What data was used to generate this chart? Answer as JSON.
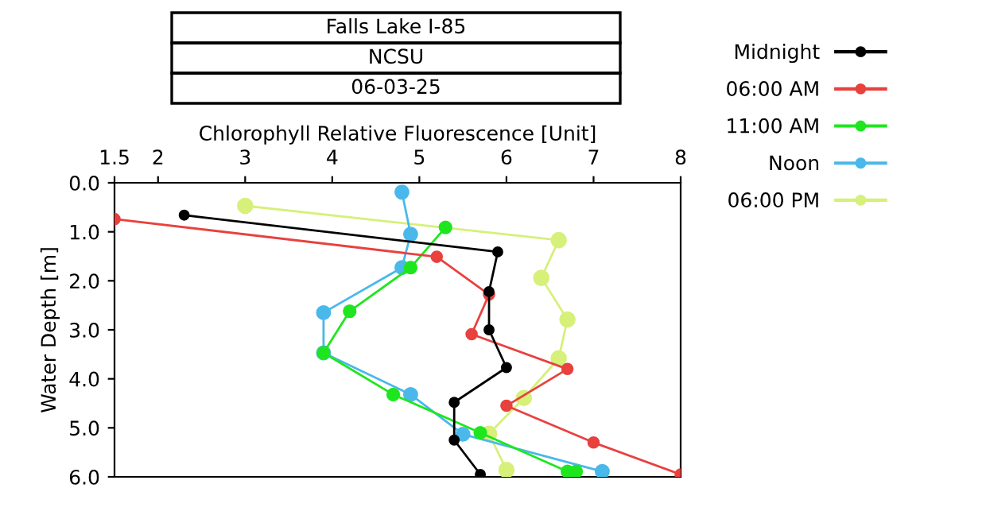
{
  "chart_data": {
    "type": "line",
    "title": "Falls Lake I-85",
    "subtitle": "NCSU",
    "annotations": [
      "06-03-25"
    ],
    "xlabel": "Chlorophyll Relative Fluorescence [Unit]",
    "ylabel": "Water Depth [m]",
    "xlim": [
      1.5,
      8
    ],
    "xticks": [
      1.5,
      2,
      3,
      4,
      5,
      6,
      7,
      8
    ],
    "ylim": [
      6.0,
      0.0
    ],
    "yticks": [
      {
        "value": 0,
        "label": "0.0"
      },
      {
        "value": 1,
        "label": "1.0"
      },
      {
        "value": 2,
        "label": "2.0"
      },
      {
        "value": 3,
        "label": "3.0"
      },
      {
        "value": 4,
        "label": "4.0"
      },
      {
        "value": 5,
        "label": "5.0"
      },
      {
        "value": 6,
        "label": "6.0"
      }
    ],
    "marker": "circle",
    "line_style": "solid",
    "grid": false,
    "legend": "right",
    "series": [
      {
        "name": "Midnight",
        "color": "#000000",
        "x": [
          2.3,
          5.9,
          5.8,
          5.8,
          6.0,
          5.4,
          5.4,
          5.7
        ],
        "values": [
          0.66,
          1.41,
          2.22,
          3.0,
          3.77,
          4.48,
          5.25,
          5.95
        ]
      },
      {
        "name": "06:00 AM",
        "color": "#e8413e",
        "x": [
          1.5,
          5.2,
          5.8,
          5.6,
          6.7,
          6.0,
          7.0,
          8.0
        ],
        "values": [
          0.74,
          1.51,
          2.28,
          3.09,
          3.8,
          4.55,
          5.3,
          5.95
        ]
      },
      {
        "name": "11:00 AM",
        "color": "#1ee61e",
        "x": [
          5.3,
          4.9,
          4.2,
          3.9,
          4.7,
          5.7,
          6.7,
          6.8
        ],
        "values": [
          0.91,
          1.73,
          2.62,
          3.47,
          4.32,
          5.1,
          5.89,
          5.89
        ]
      },
      {
        "name": "Noon",
        "color": "#4ab8ea",
        "x": [
          4.8,
          4.9,
          4.8,
          3.9,
          3.9,
          4.9,
          5.5,
          7.1
        ],
        "values": [
          0.19,
          1.05,
          1.73,
          2.65,
          3.47,
          4.32,
          5.13,
          5.89
        ]
      },
      {
        "name": "06:00 PM",
        "color": "#d6f07a",
        "x": [
          3.0,
          6.6,
          6.4,
          6.7,
          6.6,
          6.2,
          5.8,
          6.0
        ],
        "values": [
          0.47,
          1.17,
          1.94,
          2.79,
          3.58,
          4.39,
          5.12,
          5.86
        ]
      }
    ]
  }
}
